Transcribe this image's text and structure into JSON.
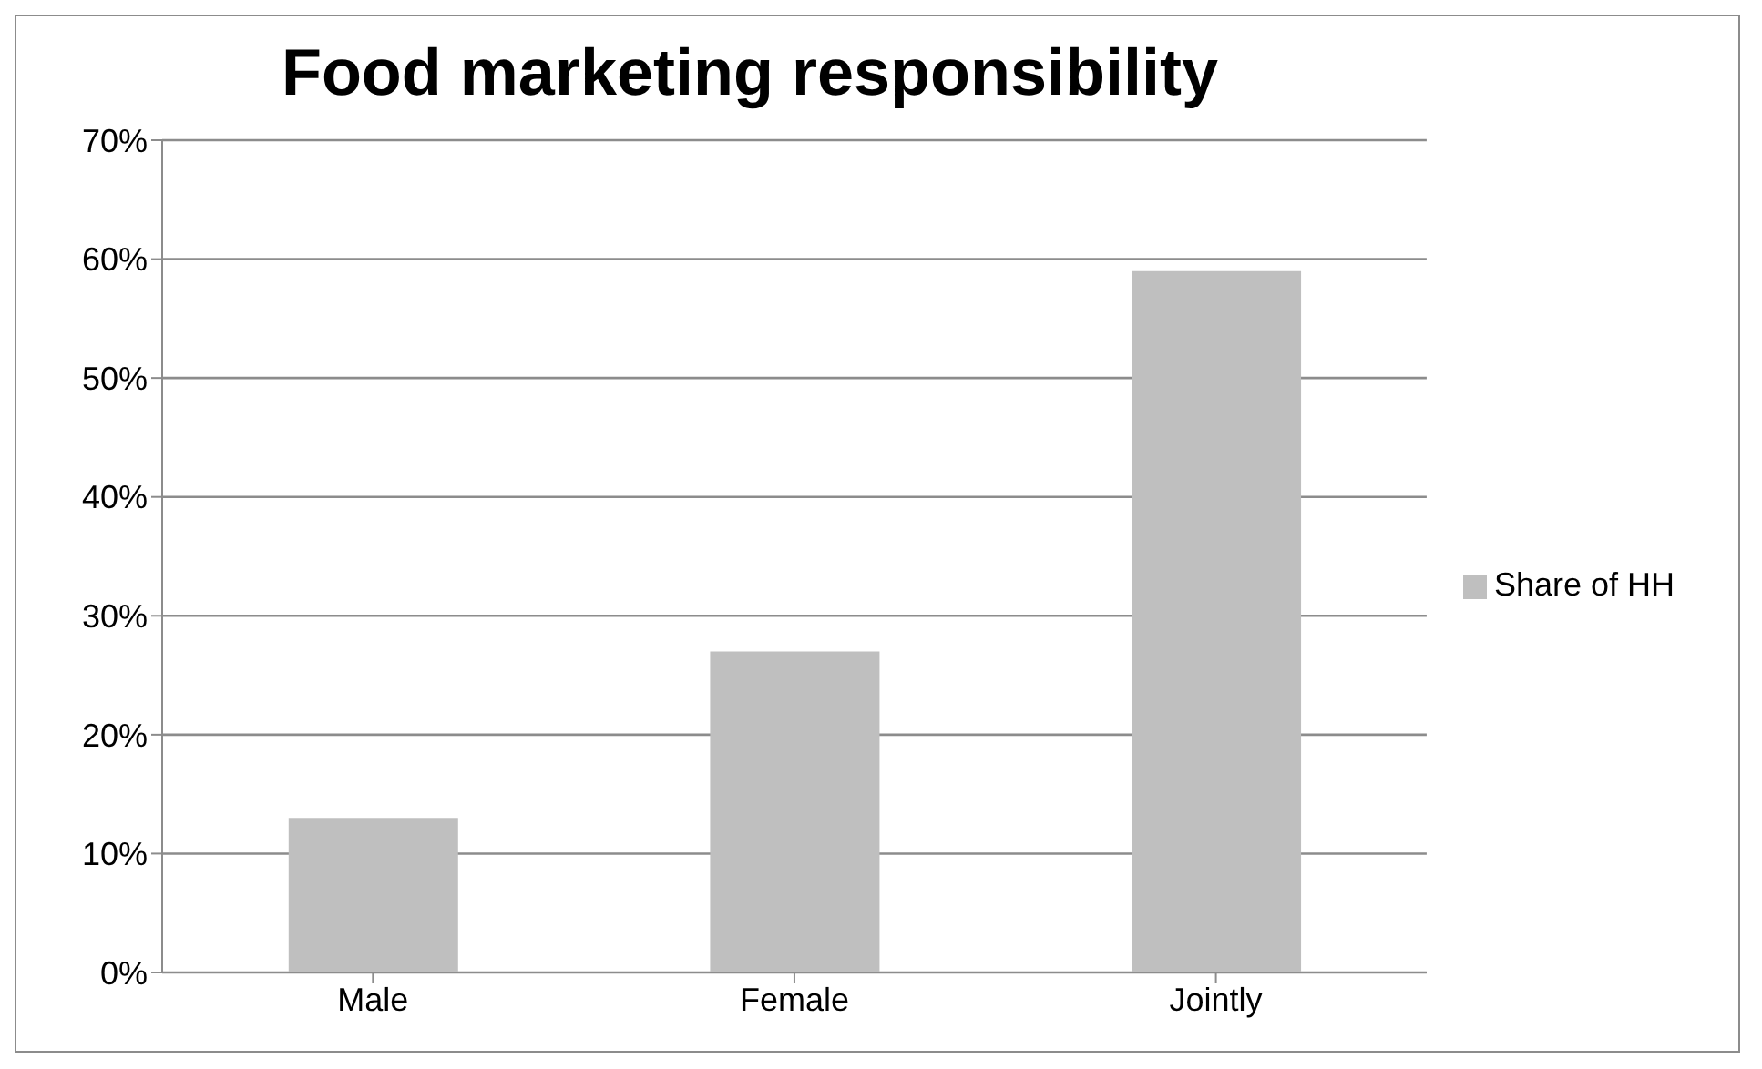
{
  "chart_data": {
    "type": "bar",
    "title": "Food marketing responsibility",
    "categories": [
      "Male",
      "Female",
      "Jointly"
    ],
    "series": [
      {
        "name": "Share of HH",
        "color": "#bfbfbf",
        "values": [
          13,
          27,
          59
        ]
      }
    ],
    "ylim": [
      0,
      70
    ],
    "yticks": [
      {
        "value": 0,
        "label": "0%"
      },
      {
        "value": 10,
        "label": "10%"
      },
      {
        "value": 20,
        "label": "20%"
      },
      {
        "value": 30,
        "label": "30%"
      },
      {
        "value": 40,
        "label": "40%"
      },
      {
        "value": 50,
        "label": "50%"
      },
      {
        "value": 60,
        "label": "60%"
      },
      {
        "value": 70,
        "label": "70%"
      }
    ],
    "grid": "y",
    "legend": "right"
  }
}
